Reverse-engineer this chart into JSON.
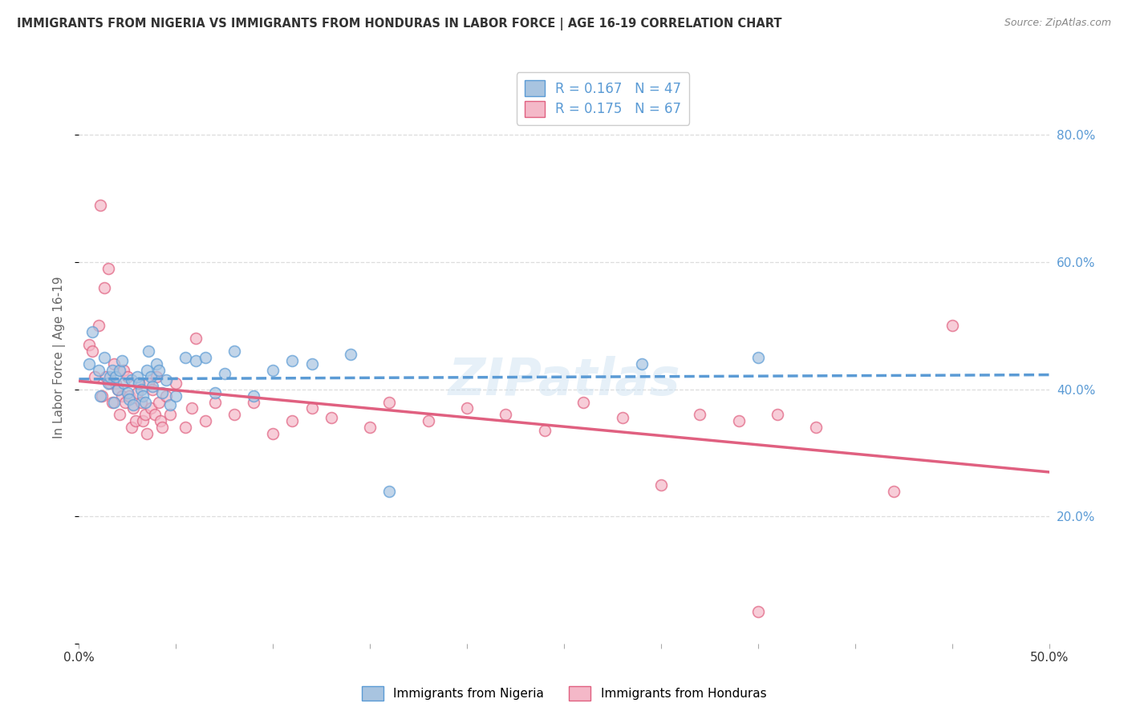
{
  "title": "IMMIGRANTS FROM NIGERIA VS IMMIGRANTS FROM HONDURAS IN LABOR FORCE | AGE 16-19 CORRELATION CHART",
  "source": "Source: ZipAtlas.com",
  "ylabel": "In Labor Force | Age 16-19",
  "xlim": [
    0.0,
    0.5
  ],
  "ylim": [
    0.0,
    0.9
  ],
  "xticks": [
    0.0,
    0.05,
    0.1,
    0.15,
    0.2,
    0.25,
    0.3,
    0.35,
    0.4,
    0.45,
    0.5
  ],
  "yticks": [
    0.0,
    0.2,
    0.4,
    0.6,
    0.8
  ],
  "nigeria_color": "#a8c4e0",
  "nigeria_edge_color": "#5b9bd5",
  "honduras_color": "#f4b8c8",
  "honduras_edge_color": "#e06080",
  "nigeria_R": 0.167,
  "nigeria_N": 47,
  "honduras_R": 0.175,
  "honduras_N": 67,
  "nigeria_x": [
    0.005,
    0.007,
    0.01,
    0.011,
    0.013,
    0.015,
    0.016,
    0.017,
    0.018,
    0.019,
    0.02,
    0.021,
    0.022,
    0.023,
    0.025,
    0.026,
    0.027,
    0.028,
    0.03,
    0.031,
    0.032,
    0.033,
    0.034,
    0.035,
    0.036,
    0.037,
    0.038,
    0.04,
    0.041,
    0.043,
    0.045,
    0.047,
    0.05,
    0.055,
    0.06,
    0.065,
    0.07,
    0.075,
    0.08,
    0.09,
    0.1,
    0.11,
    0.12,
    0.14,
    0.16,
    0.29,
    0.35
  ],
  "nigeria_y": [
    0.44,
    0.49,
    0.43,
    0.39,
    0.45,
    0.41,
    0.42,
    0.43,
    0.38,
    0.42,
    0.4,
    0.43,
    0.445,
    0.41,
    0.395,
    0.385,
    0.415,
    0.375,
    0.42,
    0.41,
    0.4,
    0.39,
    0.38,
    0.43,
    0.46,
    0.42,
    0.405,
    0.44,
    0.43,
    0.395,
    0.415,
    0.375,
    0.39,
    0.45,
    0.445,
    0.45,
    0.395,
    0.425,
    0.46,
    0.39,
    0.43,
    0.445,
    0.44,
    0.455,
    0.24,
    0.44,
    0.45
  ],
  "honduras_x": [
    0.005,
    0.007,
    0.008,
    0.01,
    0.011,
    0.012,
    0.013,
    0.014,
    0.015,
    0.016,
    0.017,
    0.018,
    0.019,
    0.02,
    0.021,
    0.022,
    0.023,
    0.024,
    0.025,
    0.026,
    0.027,
    0.028,
    0.029,
    0.03,
    0.031,
    0.032,
    0.033,
    0.034,
    0.035,
    0.036,
    0.037,
    0.038,
    0.039,
    0.04,
    0.041,
    0.042,
    0.043,
    0.045,
    0.047,
    0.05,
    0.055,
    0.058,
    0.06,
    0.065,
    0.07,
    0.08,
    0.09,
    0.1,
    0.11,
    0.12,
    0.13,
    0.15,
    0.16,
    0.18,
    0.2,
    0.22,
    0.24,
    0.26,
    0.28,
    0.3,
    0.32,
    0.34,
    0.35,
    0.36,
    0.38,
    0.42,
    0.45
  ],
  "honduras_y": [
    0.47,
    0.46,
    0.42,
    0.5,
    0.69,
    0.39,
    0.56,
    0.42,
    0.59,
    0.41,
    0.38,
    0.44,
    0.41,
    0.4,
    0.36,
    0.39,
    0.43,
    0.38,
    0.42,
    0.39,
    0.34,
    0.37,
    0.35,
    0.395,
    0.41,
    0.38,
    0.35,
    0.36,
    0.33,
    0.41,
    0.37,
    0.4,
    0.36,
    0.42,
    0.38,
    0.35,
    0.34,
    0.39,
    0.36,
    0.41,
    0.34,
    0.37,
    0.48,
    0.35,
    0.38,
    0.36,
    0.38,
    0.33,
    0.35,
    0.37,
    0.355,
    0.34,
    0.38,
    0.35,
    0.37,
    0.36,
    0.335,
    0.38,
    0.355,
    0.25,
    0.36,
    0.35,
    0.05,
    0.36,
    0.34,
    0.24,
    0.5
  ],
  "watermark": "ZIPatlas",
  "bg_color": "#ffffff",
  "grid_color": "#dddddd",
  "title_color": "#333333",
  "axis_label_color": "#666666",
  "right_tick_color": "#5b9bd5",
  "marker_size": 100,
  "marker_alpha": 0.7
}
